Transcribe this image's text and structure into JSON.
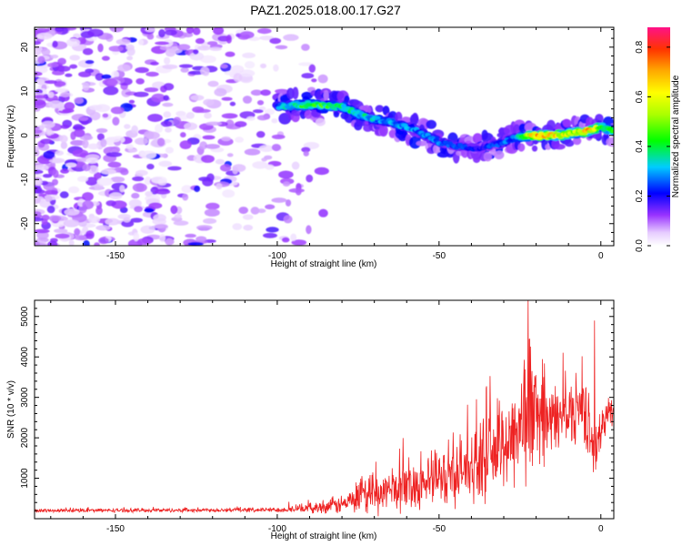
{
  "title": "PAZ1.2025.018.00.17.G27",
  "colors": {
    "snr_line": "#ee2222",
    "frame": "#000000"
  },
  "chart_data": [
    {
      "type": "heatmap",
      "xlabel": "Height of straight line (km)",
      "ylabel": "Frequency (Hz)",
      "xlim": [
        -175,
        4
      ],
      "ylim": [
        -25,
        24.5
      ],
      "x_ticks": [
        -150,
        -100,
        -50,
        0
      ],
      "y_ticks": [
        -20,
        -10,
        0,
        10,
        20
      ],
      "colorbar": {
        "label": "Normalized spectral amplitude",
        "range": [
          0,
          0.88
        ],
        "ticks": [
          0.0,
          0.2,
          0.4,
          0.6,
          0.8
        ]
      },
      "ridge": {
        "x": [
          -100,
          -90,
          -80,
          -72,
          -65,
          -58,
          -50,
          -44,
          -38,
          -32,
          -26,
          -20,
          -14,
          -8,
          -4,
          0,
          4
        ],
        "y": [
          6.5,
          7,
          6.5,
          4,
          3,
          1.5,
          -1.5,
          -2.5,
          -3,
          -2,
          -0.5,
          0,
          0,
          0.5,
          1,
          2,
          1
        ],
        "amplitude": [
          0.3,
          0.45,
          0.4,
          0.35,
          0.3,
          0.3,
          0.28,
          0.25,
          0.22,
          0.25,
          0.3,
          0.75,
          0.65,
          0.55,
          0.7,
          0.5,
          0.45
        ]
      },
      "noise_region": {
        "x": [
          -175,
          -90
        ],
        "amplitude_range": [
          0.02,
          0.15
        ]
      }
    },
    {
      "type": "line",
      "xlabel": "Height of straight line (km)",
      "ylabel": "SNR (10 * v/v)",
      "xlim": [
        -175,
        4
      ],
      "ylim": [
        0,
        5400
      ],
      "x_ticks": [
        -150,
        -100,
        -50,
        0
      ],
      "y_ticks": [
        1000,
        2000,
        3000,
        4000,
        5000
      ],
      "envelope": {
        "x": [
          -175,
          -100,
          -90,
          -80,
          -70,
          -60,
          -50,
          -40,
          -30,
          -25,
          -22,
          -20,
          -15,
          -10,
          -5,
          -2,
          0,
          2,
          4
        ],
        "mean": [
          200,
          220,
          260,
          350,
          600,
          800,
          1000,
          1300,
          1800,
          2300,
          2800,
          2500,
          2400,
          2600,
          2800,
          1500,
          2200,
          2600,
          2800
        ],
        "spread": [
          40,
          60,
          120,
          250,
          500,
          600,
          700,
          900,
          1100,
          1500,
          2000,
          1200,
          900,
          800,
          900,
          700,
          500,
          400,
          400
        ]
      },
      "peaks": [
        {
          "x": -22.5,
          "y": 5400
        },
        {
          "x": -2,
          "y": 4900
        }
      ]
    }
  ]
}
